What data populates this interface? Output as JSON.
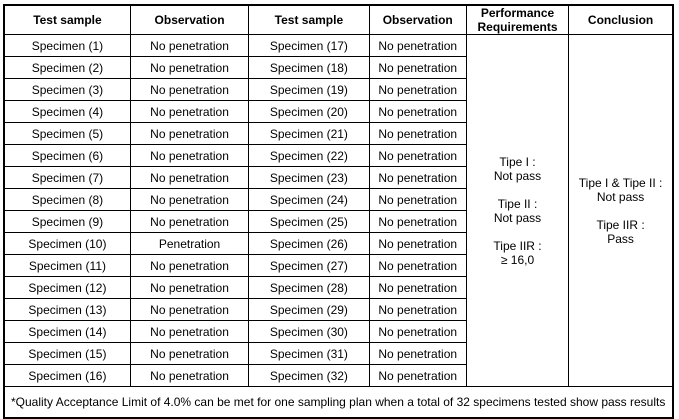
{
  "table": {
    "headers": [
      "Test sample",
      "Observation",
      "Test sample",
      "Observation",
      "Performance Requirements",
      "Conclusion"
    ],
    "rows": [
      {
        "sample_left": "Specimen (1)",
        "obs_left": "No penetration",
        "sample_right": "Specimen (17)",
        "obs_right": "No penetration"
      },
      {
        "sample_left": "Specimen (2)",
        "obs_left": "No penetration",
        "sample_right": "Specimen (18)",
        "obs_right": "No penetration"
      },
      {
        "sample_left": "Specimen (3)",
        "obs_left": "No penetration",
        "sample_right": "Specimen (19)",
        "obs_right": "No penetration"
      },
      {
        "sample_left": "Specimen (4)",
        "obs_left": "No penetration",
        "sample_right": "Specimen (20)",
        "obs_right": "No penetration"
      },
      {
        "sample_left": "Specimen (5)",
        "obs_left": "No penetration",
        "sample_right": "Specimen (21)",
        "obs_right": "No penetration"
      },
      {
        "sample_left": "Specimen (6)",
        "obs_left": "No penetration",
        "sample_right": "Specimen (22)",
        "obs_right": "No penetration"
      },
      {
        "sample_left": "Specimen (7)",
        "obs_left": "No penetration",
        "sample_right": "Specimen (23)",
        "obs_right": "No penetration"
      },
      {
        "sample_left": "Specimen (8)",
        "obs_left": "No penetration",
        "sample_right": "Specimen (24)",
        "obs_right": "No penetration"
      },
      {
        "sample_left": "Specimen (9)",
        "obs_left": "No penetration",
        "sample_right": "Specimen (25)",
        "obs_right": "No penetration"
      },
      {
        "sample_left": "Specimen (10)",
        "obs_left": "Penetration",
        "sample_right": "Specimen (26)",
        "obs_right": "No penetration"
      },
      {
        "sample_left": "Specimen (11)",
        "obs_left": "No penetration",
        "sample_right": "Specimen (27)",
        "obs_right": "No penetration"
      },
      {
        "sample_left": "Specimen (12)",
        "obs_left": "No penetration",
        "sample_right": "Specimen (28)",
        "obs_right": "No penetration"
      },
      {
        "sample_left": "Specimen (13)",
        "obs_left": "No penetration",
        "sample_right": "Specimen (29)",
        "obs_right": "No penetration"
      },
      {
        "sample_left": "Specimen (14)",
        "obs_left": "No penetration",
        "sample_right": "Specimen (30)",
        "obs_right": "No penetration"
      },
      {
        "sample_left": "Specimen (15)",
        "obs_left": "No penetration",
        "sample_right": "Specimen (31)",
        "obs_right": "No penetration"
      },
      {
        "sample_left": "Specimen (16)",
        "obs_left": "No penetration",
        "sample_right": "Specimen (32)",
        "obs_right": "No penetration"
      }
    ],
    "performance_requirements": {
      "lines": [
        "Tipe I :",
        "Not pass",
        "",
        "Tipe II :",
        "Not pass",
        "",
        "Tipe IIR :",
        "≥ 16,0"
      ]
    },
    "conclusion": {
      "lines": [
        "Tipe I & Tipe II :",
        "Not pass",
        "",
        "Tipe IIR :",
        "Pass"
      ]
    },
    "footnote": "*Quality Acceptance Limit of 4.0% can be met for one sampling plan when a total of 32 specimens tested show pass results"
  }
}
